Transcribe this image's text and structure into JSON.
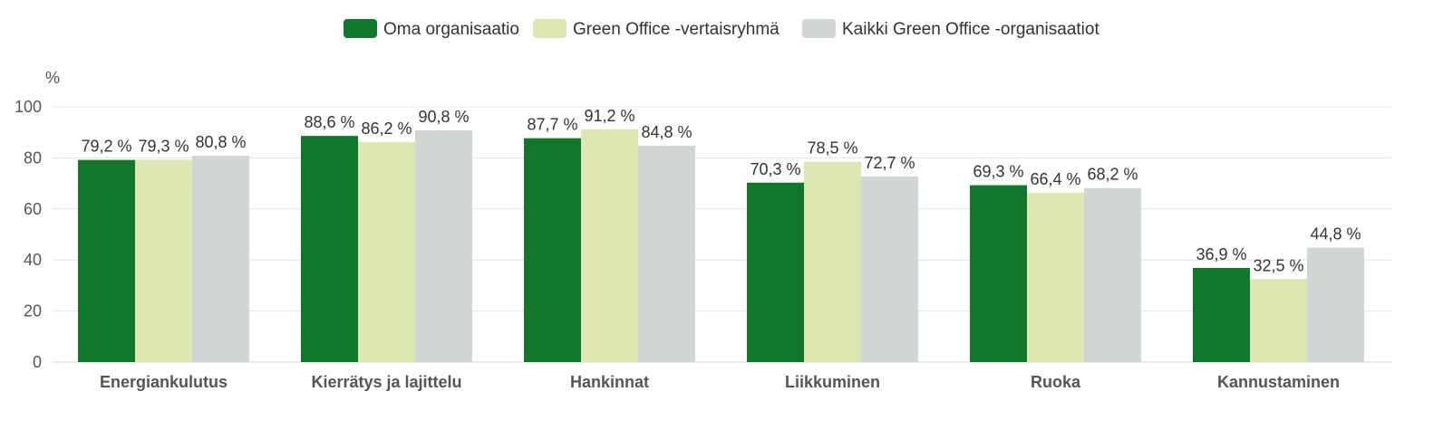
{
  "chart_data": {
    "type": "bar",
    "unit_label": "%",
    "categories": [
      "Energiankulutus",
      "Kierrätys ja lajittelu",
      "Hankinnat",
      "Liikkuminen",
      "Ruoka",
      "Kannustaminen"
    ],
    "series": [
      {
        "name": "Oma organisaatio",
        "color": "#12772a",
        "values": [
          79.2,
          88.6,
          87.7,
          70.3,
          69.3,
          36.9
        ],
        "labels": [
          "79,2 %",
          "88,6 %",
          "87,7 %",
          "70,3 %",
          "69,3 %",
          "36,9 %"
        ]
      },
      {
        "name": "Green Office -vertaisryhmä",
        "color": "#dde6b3",
        "values": [
          79.3,
          86.2,
          91.2,
          78.5,
          66.4,
          32.5
        ],
        "labels": [
          "79,3 %",
          "86,2 %",
          "91,2 %",
          "78,5 %",
          "66,4 %",
          "32,5 %"
        ]
      },
      {
        "name": "Kaikki Green Office -organisaatiot",
        "color": "#d2d5d6",
        "values": [
          80.8,
          90.8,
          84.8,
          72.7,
          68.2,
          44.8
        ],
        "labels": [
          "80,8 %",
          "90,8 %",
          "84,8 %",
          "72,7 %",
          "68,2 %",
          "44,8 %"
        ]
      }
    ],
    "yticks": [
      0,
      20,
      40,
      60,
      80,
      100
    ],
    "ylim": [
      0,
      100
    ],
    "grid": true,
    "legend_position": "top-center"
  }
}
